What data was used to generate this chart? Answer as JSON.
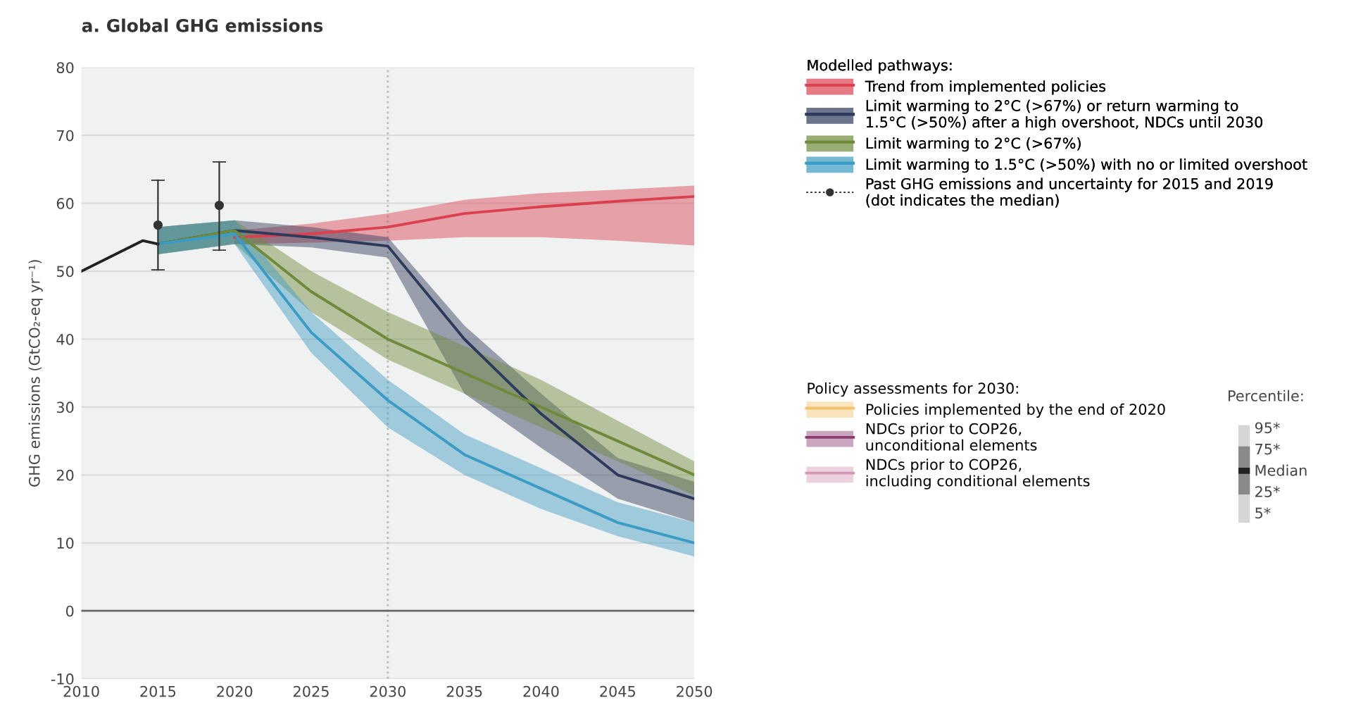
{
  "chart_data": {
    "type": "line",
    "title": "a. Global GHG emissions",
    "ylabel": "GHG emissions (GtCO₂-eq yr⁻¹)",
    "xlim": [
      2010,
      2050
    ],
    "xticks": [
      2010,
      2015,
      2020,
      2025,
      2030,
      2035,
      2040,
      2045,
      2050
    ],
    "ylim": [
      -10,
      80
    ],
    "yticks": [
      -10,
      0,
      10,
      20,
      30,
      40,
      50,
      60,
      70,
      80
    ],
    "grid": "y",
    "legend": "right",
    "legend_title": "Modelled pathways:",
    "series": [
      {
        "name": "Trend from implemented policies",
        "color": "#d9414f",
        "x": [
          2020,
          2025,
          2030,
          2035,
          2040,
          2045,
          2050
        ],
        "values": [
          55,
          55.5,
          56.5,
          58.5,
          59.5,
          60.3,
          61
        ],
        "lower": [
          54,
          54.2,
          54.5,
          55,
          55,
          54.5,
          53.8
        ],
        "upper": [
          56,
          57,
          58.5,
          60.5,
          61.5,
          62,
          62.6
        ]
      },
      {
        "name": "Limit warming to 2°C (>67%) or return warming to\n1.5°C (>50%) after a high overshoot, NDCs until 2030",
        "color": "#2e3a5c",
        "x": [
          2015,
          2020,
          2025,
          2030,
          2035,
          2040,
          2045,
          2050
        ],
        "values": [
          54,
          56,
          55,
          53.7,
          40,
          29,
          20,
          16.5
        ],
        "lower": [
          52.5,
          54,
          53.5,
          52,
          32,
          24,
          16.5,
          13
        ],
        "upper": [
          56.5,
          57.5,
          56.5,
          55,
          42,
          32,
          22.5,
          19
        ]
      },
      {
        "name": "Limit warming to 2°C (>67%)",
        "color": "#6f8a3a",
        "x": [
          2015,
          2020,
          2025,
          2030,
          2035,
          2040,
          2045,
          2050
        ],
        "values": [
          54,
          56,
          47,
          40,
          35,
          30,
          25,
          20
        ],
        "lower": [
          52.5,
          54,
          44,
          37,
          32,
          27,
          22,
          17
        ],
        "upper": [
          56.5,
          57.5,
          50,
          44,
          39,
          34,
          28,
          22
        ]
      },
      {
        "name": "Limit warming to 1.5°C (>50%) with no or limited overshoot",
        "color": "#3a9cc4",
        "x": [
          2015,
          2020,
          2025,
          2030,
          2035,
          2040,
          2045,
          2050
        ],
        "values": [
          54,
          55.5,
          41,
          31,
          23,
          18,
          13,
          10
        ],
        "lower": [
          52.5,
          54,
          38,
          27,
          20,
          15,
          11,
          8
        ],
        "upper": [
          56.5,
          57.5,
          44,
          34,
          26,
          21,
          16,
          13
        ]
      },
      {
        "color": "#222222",
        "x": [
          2010,
          2014,
          2015
        ],
        "values": [
          50,
          54.5,
          54
        ]
      },
      {
        "name": "Past GHG emissions and uncertainty for 2015 and 2019\n(dot indicates the median)",
        "type": "scatter",
        "color": "#333333",
        "x": [
          2015,
          2019
        ],
        "values": [
          56.8,
          59.7
        ],
        "errors": [
          [
            50.2,
            63.4
          ],
          [
            53.1,
            66.1
          ]
        ]
      },
      {
        "name": "Policies implemented by the end of 2020",
        "color": "#f2c46e",
        "values": [
          null
        ]
      },
      {
        "name": "NDCs prior to COP26,\nunconditional elements",
        "color": "#8b3a72",
        "values": [
          null
        ]
      },
      {
        "name": "NDCs prior to COP26,\nincluding conditional elements",
        "color": "#d49ab5",
        "values": [
          null
        ]
      }
    ],
    "ref_lines": [
      {
        "axis": "x",
        "value": 2030,
        "color": "#bbbbbb",
        "line_style": "dotted"
      },
      {
        "axis": "y",
        "value": 0,
        "color": "#666666",
        "line_style": "solid"
      }
    ],
    "annotations": [
      "Policy assessments for 2030:",
      "Percentile:",
      "95*",
      "75*",
      "Median",
      "25*",
      "5*"
    ]
  }
}
